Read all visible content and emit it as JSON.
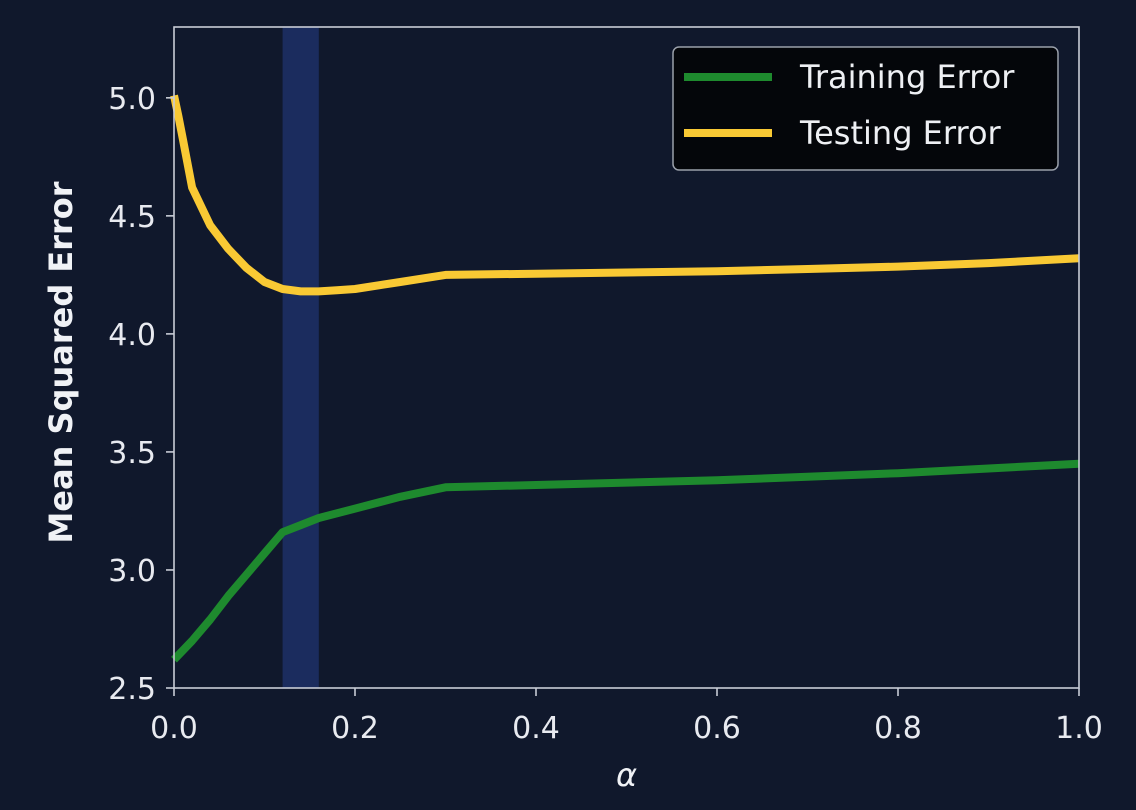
{
  "chart_data": {
    "type": "line",
    "title": "",
    "xlabel": "α",
    "ylabel": "Mean Squared Error",
    "xlim": [
      0.0,
      1.0
    ],
    "ylim": [
      2.5,
      5.3
    ],
    "xticks": [
      0.0,
      0.2,
      0.4,
      0.6,
      0.8,
      1.0
    ],
    "xtick_labels": [
      "0.0",
      "0.2",
      "0.4",
      "0.6",
      "0.8",
      "1.0"
    ],
    "yticks": [
      2.5,
      3.0,
      3.5,
      4.0,
      4.5,
      5.0
    ],
    "ytick_labels": [
      "2.5",
      "3.0",
      "3.5",
      "4.0",
      "4.5",
      "5.0"
    ],
    "grid": false,
    "legend_position": "top-right",
    "highlight_band": {
      "x_start": 0.12,
      "x_end": 0.16,
      "color": "#1b2c5e"
    },
    "series": [
      {
        "name": "Training Error",
        "color": "#1e8a2e",
        "x": [
          0.0,
          0.02,
          0.04,
          0.06,
          0.08,
          0.1,
          0.12,
          0.14,
          0.16,
          0.2,
          0.25,
          0.3,
          0.4,
          0.5,
          0.6,
          0.7,
          0.8,
          0.9,
          1.0
        ],
        "y": [
          2.62,
          2.7,
          2.79,
          2.89,
          2.98,
          3.07,
          3.16,
          3.19,
          3.22,
          3.26,
          3.31,
          3.35,
          3.36,
          3.37,
          3.38,
          3.395,
          3.41,
          3.43,
          3.45
        ]
      },
      {
        "name": "Testing Error",
        "color": "#f9c934",
        "x": [
          0.0,
          0.005,
          0.01,
          0.02,
          0.04,
          0.06,
          0.08,
          0.1,
          0.12,
          0.14,
          0.16,
          0.18,
          0.2,
          0.25,
          0.3,
          0.4,
          0.5,
          0.6,
          0.7,
          0.8,
          0.9,
          1.0
        ],
        "y": [
          5.01,
          4.92,
          4.82,
          4.62,
          4.46,
          4.36,
          4.28,
          4.22,
          4.19,
          4.18,
          4.18,
          4.185,
          4.19,
          4.22,
          4.25,
          4.255,
          4.26,
          4.265,
          4.275,
          4.285,
          4.3,
          4.32
        ]
      }
    ]
  }
}
